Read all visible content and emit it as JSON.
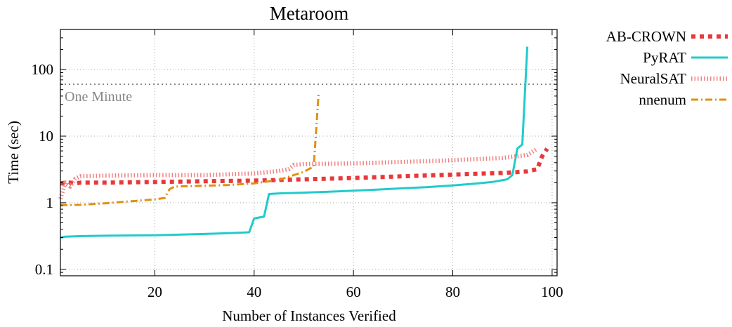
{
  "chart_data": {
    "type": "line",
    "title": "Metaroom",
    "xlabel": "Number of Instances Verified",
    "ylabel": "Time (sec)",
    "xlim": [
      1,
      101
    ],
    "ylim": [
      0.08,
      400
    ],
    "yscale": "log",
    "grid": true,
    "legend_position": "outside-right",
    "x_ticks": [
      20,
      40,
      60,
      80,
      100
    ],
    "x_tick_labels": [
      "20",
      "40",
      "60",
      "80",
      "100"
    ],
    "y_ticks": [
      0.1,
      1,
      10,
      100
    ],
    "y_tick_labels": [
      "0.1",
      "1",
      "10",
      "100"
    ],
    "reference_line": {
      "label": "One Minute",
      "value": 60,
      "color": "#888888"
    },
    "series": [
      {
        "name": "AB-CROWN",
        "color": "#e8383b",
        "style": "dotted",
        "points": [
          [
            1,
            1.95
          ],
          [
            2,
            2.0
          ],
          [
            3,
            2.0
          ],
          [
            4,
            1.95
          ],
          [
            5,
            2.0
          ],
          [
            10,
            2.0
          ],
          [
            20,
            2.05
          ],
          [
            30,
            2.1
          ],
          [
            40,
            2.15
          ],
          [
            50,
            2.25
          ],
          [
            60,
            2.35
          ],
          [
            70,
            2.5
          ],
          [
            80,
            2.65
          ],
          [
            90,
            2.8
          ],
          [
            95,
            2.95
          ],
          [
            97,
            3.2
          ],
          [
            98,
            5.0
          ],
          [
            99,
            6.5
          ]
        ]
      },
      {
        "name": "PyRAT",
        "color": "#21cbcb",
        "style": "solid",
        "points": [
          [
            1,
            0.3
          ],
          [
            2,
            0.31
          ],
          [
            5,
            0.315
          ],
          [
            10,
            0.32
          ],
          [
            20,
            0.325
          ],
          [
            30,
            0.34
          ],
          [
            35,
            0.35
          ],
          [
            39,
            0.36
          ],
          [
            40,
            0.58
          ],
          [
            41,
            0.6
          ],
          [
            42,
            0.62
          ],
          [
            43,
            1.35
          ],
          [
            45,
            1.38
          ],
          [
            50,
            1.42
          ],
          [
            55,
            1.46
          ],
          [
            60,
            1.52
          ],
          [
            65,
            1.58
          ],
          [
            70,
            1.65
          ],
          [
            75,
            1.72
          ],
          [
            80,
            1.82
          ],
          [
            85,
            1.95
          ],
          [
            88,
            2.05
          ],
          [
            91,
            2.25
          ],
          [
            92,
            2.6
          ],
          [
            93,
            6.5
          ],
          [
            94,
            7.5
          ],
          [
            94.5,
            40
          ],
          [
            95,
            220
          ]
        ]
      },
      {
        "name": "NeuralSAT",
        "color": "#f08080",
        "style": "dense-dotted",
        "points": [
          [
            1,
            1.15
          ],
          [
            2,
            2.0
          ],
          [
            3,
            1.75
          ],
          [
            4,
            2.3
          ],
          [
            5,
            2.5
          ],
          [
            10,
            2.55
          ],
          [
            20,
            2.6
          ],
          [
            30,
            2.6
          ],
          [
            40,
            2.75
          ],
          [
            45,
            3.0
          ],
          [
            47,
            3.2
          ],
          [
            48,
            3.7
          ],
          [
            50,
            3.8
          ],
          [
            60,
            3.9
          ],
          [
            70,
            4.1
          ],
          [
            80,
            4.35
          ],
          [
            90,
            4.7
          ],
          [
            95,
            5.2
          ],
          [
            97,
            6.5
          ]
        ]
      },
      {
        "name": "nnenum",
        "color": "#e09010",
        "style": "dash-dot",
        "points": [
          [
            1,
            0.93
          ],
          [
            2,
            0.92
          ],
          [
            5,
            0.93
          ],
          [
            10,
            0.98
          ],
          [
            15,
            1.05
          ],
          [
            20,
            1.12
          ],
          [
            22,
            1.18
          ],
          [
            23,
            1.6
          ],
          [
            24,
            1.75
          ],
          [
            30,
            1.8
          ],
          [
            35,
            1.85
          ],
          [
            40,
            1.95
          ],
          [
            45,
            2.2
          ],
          [
            48,
            2.6
          ],
          [
            50,
            2.9
          ],
          [
            51,
            3.2
          ],
          [
            52,
            3.5
          ],
          [
            53,
            45
          ]
        ]
      }
    ]
  }
}
